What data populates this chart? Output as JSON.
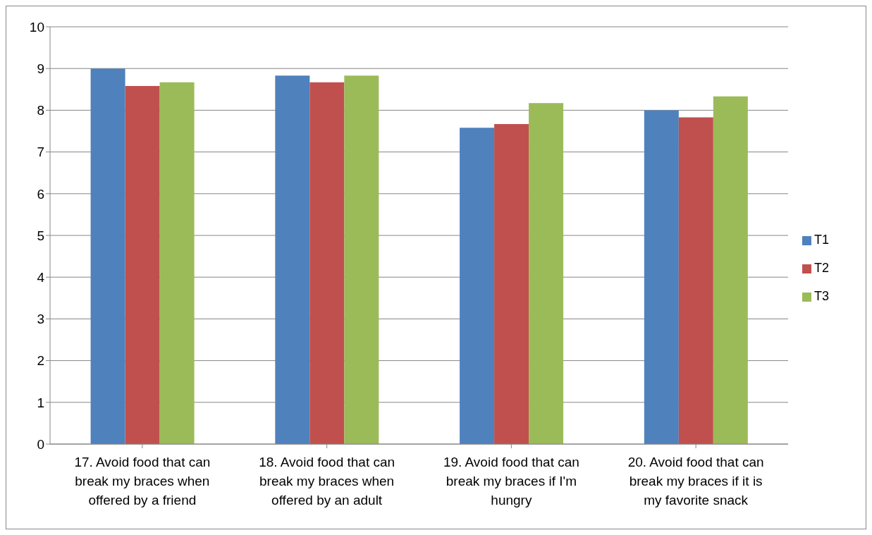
{
  "chart_data": {
    "type": "bar",
    "categories": [
      "17. Avoid food that can break my braces when offered by a friend",
      "18. Avoid food that can break my braces when offered by an adult",
      "19. Avoid food that can break my braces if I'm hungry",
      "20. Avoid food that can break my braces if it is my favorite snack"
    ],
    "series": [
      {
        "name": "T1",
        "color": "#4f81bd",
        "values": [
          9.0,
          8.83,
          7.58,
          8.0
        ]
      },
      {
        "name": "T2",
        "color": "#c0504d",
        "values": [
          8.58,
          8.67,
          7.67,
          7.83
        ]
      },
      {
        "name": "T3",
        "color": "#9bbb59",
        "values": [
          8.67,
          8.83,
          8.17,
          8.33
        ]
      }
    ],
    "ylim": [
      0,
      10
    ],
    "yticks": [
      0,
      1,
      2,
      3,
      4,
      5,
      6,
      7,
      8,
      9,
      10
    ],
    "grid": "y",
    "legend": "right"
  }
}
